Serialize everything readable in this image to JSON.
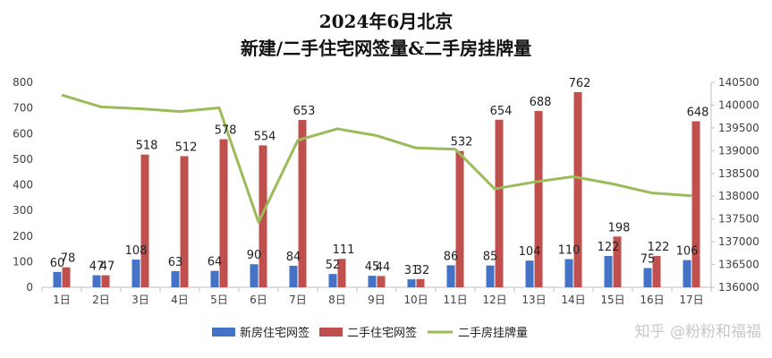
{
  "chart_data": {
    "type": "bar",
    "title_line1": "2024年6月北京",
    "title_line2": "新建/二手住宅网签量&二手房挂牌量",
    "categories": [
      "1日",
      "2日",
      "3日",
      "4日",
      "5日",
      "6日",
      "7日",
      "8日",
      "9日",
      "10日",
      "11日",
      "12日",
      "13日",
      "14日",
      "15日",
      "16日",
      "17日"
    ],
    "series": [
      {
        "name": "新房住宅网签",
        "type": "bar",
        "axis": "left",
        "color": "#4472c4",
        "values": [
          60,
          47,
          108,
          63,
          64,
          90,
          84,
          52,
          45,
          31,
          86,
          85,
          104,
          110,
          122,
          75,
          106
        ]
      },
      {
        "name": "二手住宅网签",
        "type": "bar",
        "axis": "left",
        "color": "#c0504d",
        "values": [
          78,
          47,
          518,
          512,
          578,
          554,
          653,
          111,
          44,
          32,
          532,
          654,
          688,
          762,
          198,
          122,
          648
        ]
      },
      {
        "name": "二手房挂牌量",
        "type": "line",
        "axis": "right",
        "color": "#9bbb59",
        "values": [
          140220,
          139960,
          139920,
          139860,
          139940,
          137430,
          139230,
          139480,
          139330,
          139060,
          139030,
          138160,
          138310,
          138430,
          138270,
          138070,
          138010
        ]
      }
    ],
    "y_left": {
      "min": 0,
      "max": 800,
      "ticks": [
        0,
        100,
        200,
        300,
        400,
        500,
        600,
        700,
        800
      ]
    },
    "y_right": {
      "min": 136000,
      "max": 140500,
      "ticks": [
        136000,
        136500,
        137000,
        137500,
        138000,
        138500,
        139000,
        139500,
        140000,
        140500
      ]
    },
    "grid": false,
    "legend_position": "bottom"
  },
  "watermark": "知乎 @粉粉和福福"
}
